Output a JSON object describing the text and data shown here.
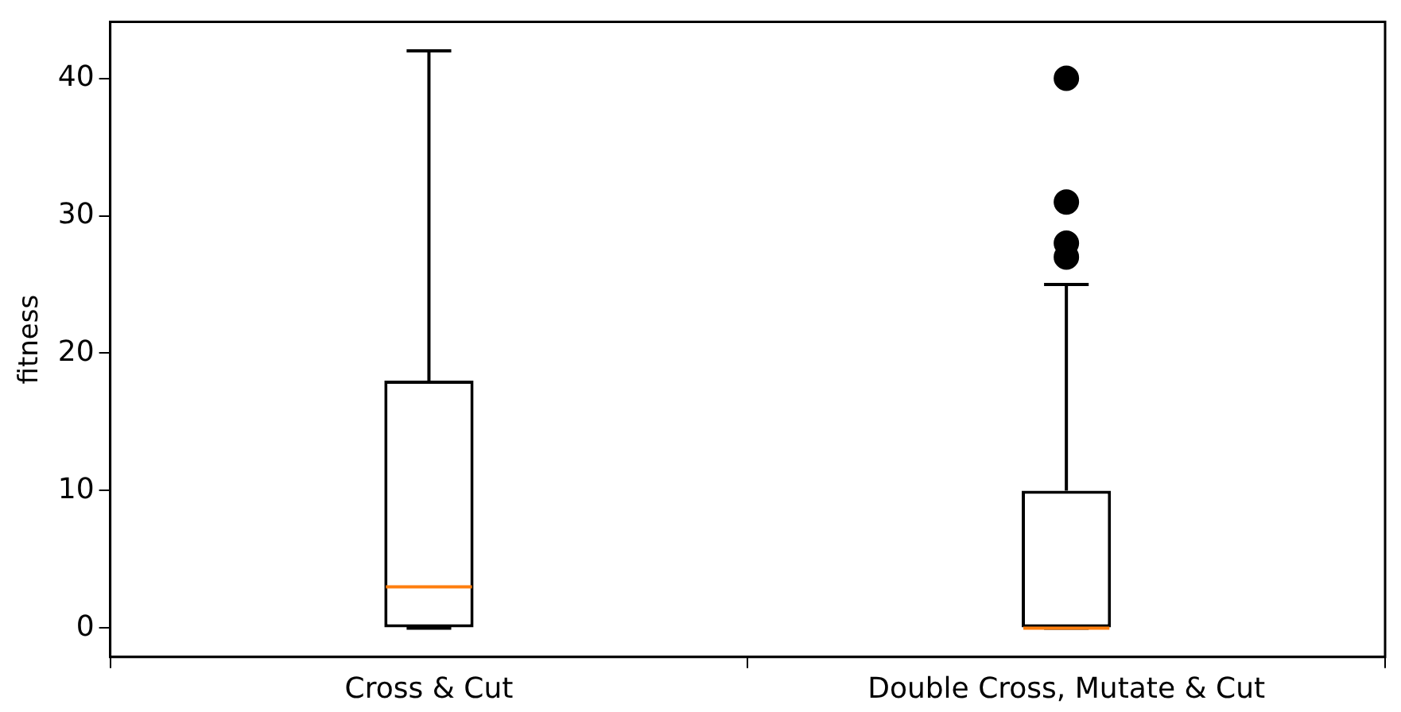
{
  "chart_data": {
    "type": "box",
    "ylabel": "fitness",
    "categories": [
      "Cross & Cut",
      "Double Cross, Mutate & Cut"
    ],
    "boxes": [
      {
        "low": 0,
        "q1": 0,
        "median": 3,
        "q3": 18,
        "high": 42
      },
      {
        "low": 0,
        "q1": 0,
        "median": 0,
        "q3": 10,
        "high": 25,
        "outliers": [
          27,
          28,
          31,
          40
        ]
      }
    ],
    "ylim": [
      -2.1,
      44.1
    ],
    "yticks": [
      0,
      10,
      20,
      30,
      40
    ],
    "grid": false,
    "legend": false,
    "marker": "circle"
  }
}
